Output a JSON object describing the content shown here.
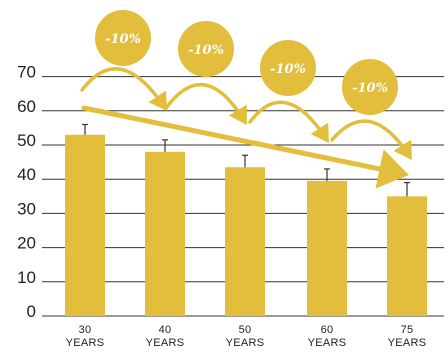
{
  "chart_data": {
    "type": "bar",
    "categories": [
      "30\nYEARS",
      "40\nYEARS",
      "50\nYEARS",
      "60\nYEARS",
      "75\nYEARS"
    ],
    "values": [
      53,
      48,
      43.5,
      39.5,
      35
    ],
    "error_upper": [
      56,
      51.5,
      47,
      43,
      39
    ],
    "ylim": [
      0,
      75
    ],
    "yticks": [
      0,
      10,
      20,
      30,
      40,
      50,
      60,
      70
    ],
    "grid": true,
    "annotations": [
      "-10%",
      "-10%",
      "-10%",
      "-10%"
    ],
    "trend_arrow": {
      "from": 62,
      "to": 47
    }
  },
  "colors": {
    "bar": "#E2BE3C",
    "badge": "#E2BE3C",
    "grid": "#333333",
    "error_bar": "#333333",
    "text": "#222222",
    "badge_text": "#ffffff"
  }
}
